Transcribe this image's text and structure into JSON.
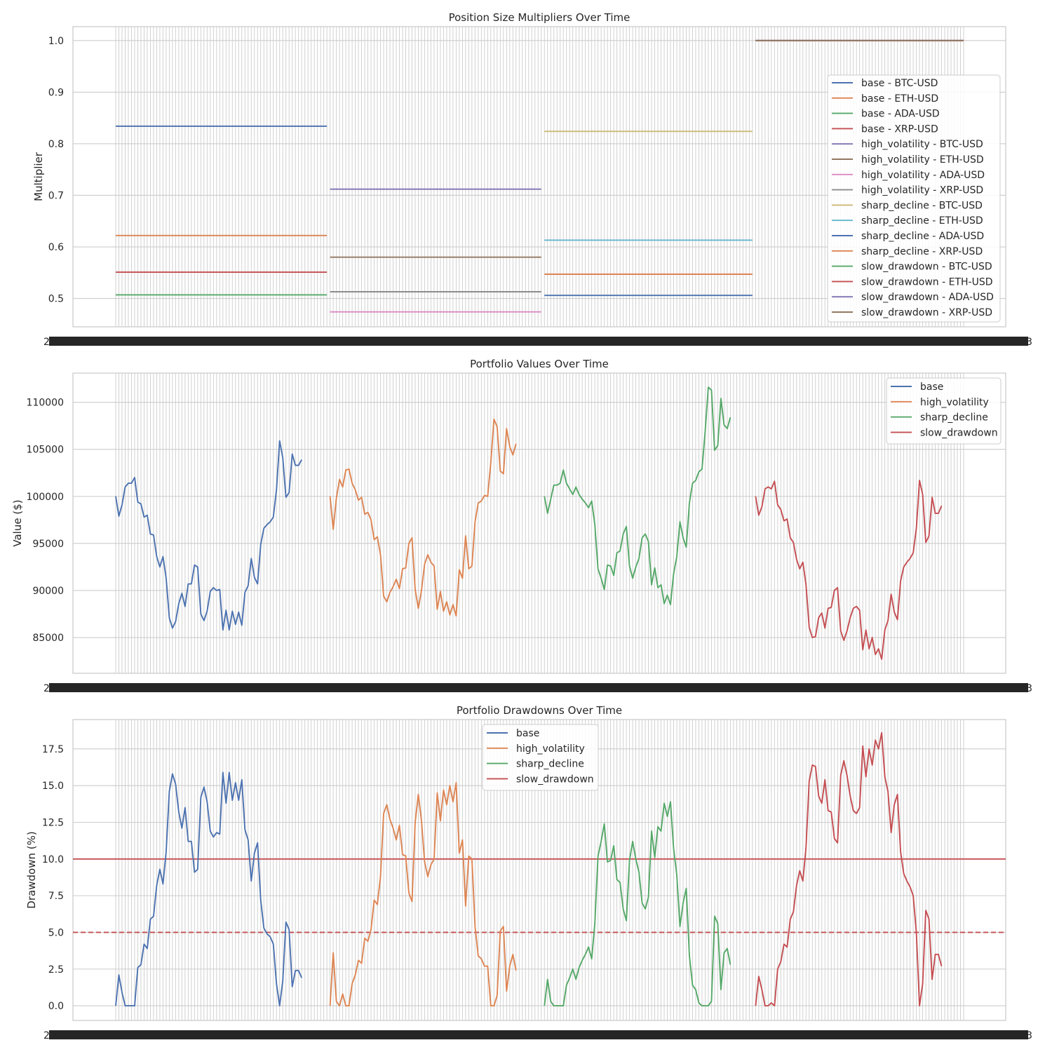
{
  "colors": {
    "palette": [
      "#4c72b0",
      "#dd8452",
      "#55a868",
      "#c44e52",
      "#8172b3",
      "#937860",
      "#da8bc3",
      "#8c8c8c",
      "#ccb974",
      "#64b5cd"
    ],
    "grid": "#cccccc",
    "spine": "#cccccc",
    "threshold_solid": "#c44e52",
    "threshold_dashed": "#c44e52"
  },
  "xaxis": {
    "n_points": 270,
    "tick_label_left": "2022",
    "tick_label_right": "3"
  },
  "chart_data": [
    {
      "type": "line",
      "title": "Position Size Multipliers Over Time",
      "xlabel": "",
      "ylabel": "Multiplier",
      "ylim": [
        0.445,
        1.027
      ],
      "yticks": [
        0.5,
        0.6,
        0.7,
        0.8,
        0.9,
        1.0
      ],
      "ytick_labels": [
        "0.5",
        "0.6",
        "0.7",
        "0.8",
        "0.9",
        "1.0"
      ],
      "legend_location": "center-right",
      "series": [
        {
          "name": "base - BTC-USD",
          "x_range": [
            0,
            67
          ],
          "value": 0.834
        },
        {
          "name": "base - ETH-USD",
          "x_range": [
            0,
            67
          ],
          "value": 0.622
        },
        {
          "name": "base - ADA-USD",
          "x_range": [
            0,
            67
          ],
          "value": 0.507
        },
        {
          "name": "base - XRP-USD",
          "x_range": [
            0,
            67
          ],
          "value": 0.551
        },
        {
          "name": "high_volatility - BTC-USD",
          "x_range": [
            68,
            135
          ],
          "value": 0.712
        },
        {
          "name": "high_volatility - ETH-USD",
          "x_range": [
            68,
            135
          ],
          "value": 0.58
        },
        {
          "name": "high_volatility - ADA-USD",
          "x_range": [
            68,
            135
          ],
          "value": 0.474
        },
        {
          "name": "high_volatility - XRP-USD",
          "x_range": [
            68,
            135
          ],
          "value": 0.513
        },
        {
          "name": "sharp_decline - BTC-USD",
          "x_range": [
            136,
            202
          ],
          "value": 0.824
        },
        {
          "name": "sharp_decline - ETH-USD",
          "x_range": [
            136,
            202
          ],
          "value": 0.613
        },
        {
          "name": "sharp_decline - ADA-USD",
          "x_range": [
            136,
            202
          ],
          "value": 0.506
        },
        {
          "name": "sharp_decline - XRP-USD",
          "x_range": [
            136,
            202
          ],
          "value": 0.547
        },
        {
          "name": "slow_drawdown - BTC-USD",
          "x_range": [
            203,
            269
          ],
          "value": 1.0
        },
        {
          "name": "slow_drawdown - ETH-USD",
          "x_range": [
            203,
            269
          ],
          "value": 1.0
        },
        {
          "name": "slow_drawdown - ADA-USD",
          "x_range": [
            203,
            269
          ],
          "value": 1.0
        },
        {
          "name": "slow_drawdown - XRP-USD",
          "x_range": [
            203,
            269
          ],
          "value": 1.0
        }
      ]
    },
    {
      "type": "line",
      "title": "Portfolio Values Over Time",
      "xlabel": "",
      "ylabel": "Value ($)",
      "ylim": [
        81200,
        113100
      ],
      "yticks": [
        85000,
        90000,
        95000,
        100000,
        105000,
        110000
      ],
      "ytick_labels": [
        "85000",
        "90000",
        "95000",
        "100000",
        "105000",
        "110000"
      ],
      "legend_location": "top-right",
      "series": [
        {
          "name": "base",
          "x_start": 0,
          "values": [
            100000,
            97900,
            99100,
            101000,
            101400,
            101400,
            102000,
            99400,
            99200,
            97800,
            98000,
            96000,
            95900,
            93600,
            92500,
            93600,
            91300,
            87100,
            86000,
            86700,
            88600,
            89700,
            88300,
            90700,
            90700,
            92700,
            92500,
            87500,
            86800,
            87800,
            89900,
            90300,
            90000,
            90100,
            85800,
            87900,
            85800,
            87800,
            86400,
            87700,
            86300,
            89800,
            90500,
            93400,
            91400,
            90700,
            94900,
            96600,
            97000,
            97300,
            97800,
            100700,
            105900,
            104100,
            99900,
            100400,
            104500,
            103300,
            103300,
            103900
          ]
        },
        {
          "name": "high_volatility",
          "x_start": 68,
          "values": [
            100000,
            96500,
            99800,
            101800,
            101000,
            102800,
            102900,
            101400,
            100700,
            99600,
            99900,
            98100,
            98300,
            97500,
            95400,
            95700,
            93800,
            89400,
            88800,
            89800,
            90400,
            91200,
            90200,
            92300,
            92400,
            95000,
            95600,
            90100,
            88100,
            90000,
            92800,
            93800,
            93000,
            92600,
            88000,
            89900,
            87800,
            88800,
            87400,
            88500,
            87300,
            92200,
            91300,
            95800,
            92300,
            92600,
            97300,
            99300,
            99500,
            100100,
            100000,
            103600,
            108200,
            107400,
            102700,
            102400,
            107200,
            105300,
            104400,
            105600
          ]
        },
        {
          "name": "sharp_decline",
          "x_start": 136,
          "values": [
            100000,
            98200,
            99700,
            101200,
            101200,
            101400,
            102800,
            101400,
            100800,
            100200,
            101000,
            100200,
            99700,
            99300,
            98800,
            99500,
            97000,
            92300,
            91300,
            90100,
            92700,
            92600,
            91600,
            94000,
            94200,
            96000,
            96800,
            92600,
            91300,
            92500,
            93400,
            95600,
            96000,
            95200,
            90600,
            92400,
            90300,
            90600,
            88600,
            89500,
            88500,
            91800,
            93600,
            97300,
            95600,
            94600,
            99300,
            101400,
            101700,
            102600,
            102900,
            106900,
            111600,
            111300,
            104900,
            105400,
            110400,
            107600,
            107200,
            108400
          ]
        },
        {
          "name": "slow_drawdown",
          "x_start": 203,
          "values": [
            100000,
            98000,
            98900,
            100800,
            101000,
            100800,
            101600,
            99100,
            98600,
            97400,
            97600,
            95600,
            95100,
            93300,
            92300,
            93000,
            90600,
            86100,
            85000,
            85100,
            87100,
            87600,
            86000,
            88100,
            88200,
            90000,
            90300,
            85700,
            84700,
            85700,
            87100,
            88100,
            88300,
            87900,
            83700,
            85800,
            83800,
            85000,
            83200,
            83800,
            82700,
            85800,
            86800,
            89600,
            87700,
            86900,
            91000,
            92500,
            93000,
            93400,
            94000,
            96600,
            101700,
            100200,
            95100,
            95800,
            99900,
            98200,
            98200,
            99000
          ]
        }
      ]
    },
    {
      "type": "line",
      "title": "Portfolio Drawdowns Over Time",
      "xlabel": "",
      "ylabel": "Drawdown (%)",
      "ylim": [
        -1.0,
        19.5
      ],
      "yticks": [
        0.0,
        2.5,
        5.0,
        7.5,
        10.0,
        12.5,
        15.0,
        17.5
      ],
      "ytick_labels": [
        "0.0",
        "2.5",
        "5.0",
        "7.5",
        "10.0",
        "12.5",
        "15.0",
        "17.5"
      ],
      "legend_location": "top-center",
      "reference_lines": [
        {
          "y": 10.0,
          "style": "solid"
        },
        {
          "y": 5.0,
          "style": "dashed"
        }
      ],
      "series": [
        {
          "name": "base",
          "x_start": 0,
          "values": [
            0.0,
            2.1,
            0.9,
            0.0,
            0.0,
            0.0,
            0.0,
            2.6,
            2.8,
            4.2,
            3.9,
            5.9,
            6.1,
            8.2,
            9.3,
            8.3,
            10.5,
            14.6,
            15.8,
            15.1,
            13.2,
            12.1,
            13.5,
            11.2,
            11.2,
            9.1,
            9.3,
            14.2,
            14.9,
            13.9,
            11.9,
            11.5,
            11.8,
            11.7,
            15.9,
            13.8,
            15.9,
            14.0,
            15.2,
            14.0,
            15.4,
            12.0,
            11.3,
            8.5,
            10.4,
            11.1,
            7.2,
            5.3,
            4.9,
            4.7,
            4.2,
            1.5,
            0.0,
            1.7,
            5.7,
            5.2,
            1.3,
            2.4,
            2.4,
            1.9
          ]
        },
        {
          "name": "high_volatility",
          "x_start": 68,
          "values": [
            0.0,
            3.6,
            0.3,
            0.0,
            0.8,
            0.0,
            0.0,
            1.5,
            2.1,
            3.1,
            2.9,
            4.6,
            4.4,
            5.2,
            7.2,
            6.9,
            8.8,
            13.1,
            13.7,
            12.7,
            12.1,
            11.3,
            12.3,
            10.3,
            10.2,
            7.7,
            7.1,
            12.5,
            14.4,
            12.6,
            9.8,
            8.8,
            9.6,
            10.0,
            14.5,
            12.6,
            14.7,
            13.7,
            15.0,
            13.9,
            15.2,
            10.4,
            11.3,
            6.8,
            10.2,
            10.0,
            5.4,
            3.4,
            3.2,
            2.7,
            2.7,
            0.0,
            0.0,
            0.7,
            5.1,
            5.4,
            1.0,
            2.7,
            3.5,
            2.4
          ]
        },
        {
          "name": "sharp_decline",
          "x_start": 136,
          "values": [
            0.0,
            1.8,
            0.3,
            0.0,
            0.0,
            0.0,
            0.0,
            1.4,
            1.9,
            2.5,
            1.8,
            2.6,
            3.1,
            3.5,
            4.0,
            3.2,
            5.6,
            10.2,
            11.2,
            12.4,
            9.8,
            9.9,
            10.9,
            8.6,
            8.4,
            6.6,
            5.8,
            9.9,
            11.2,
            10.0,
            9.1,
            7.0,
            6.6,
            7.4,
            11.9,
            10.1,
            12.2,
            11.9,
            13.8,
            12.9,
            13.9,
            10.7,
            8.9,
            5.4,
            7.0,
            8.0,
            3.4,
            1.4,
            1.1,
            0.2,
            0.0,
            0.0,
            0.0,
            0.3,
            6.1,
            5.6,
            1.1,
            3.6,
            3.9,
            2.8
          ]
        },
        {
          "name": "slow_drawdown",
          "x_start": 203,
          "values": [
            0.0,
            2.0,
            1.1,
            0.0,
            0.0,
            0.2,
            0.0,
            2.5,
            3.0,
            4.2,
            4.0,
            5.9,
            6.4,
            8.2,
            9.2,
            8.5,
            10.8,
            15.3,
            16.4,
            16.3,
            14.3,
            13.8,
            15.4,
            13.3,
            13.2,
            11.4,
            11.1,
            15.7,
            16.7,
            15.7,
            14.3,
            13.3,
            13.1,
            13.5,
            17.7,
            15.6,
            17.5,
            16.4,
            18.1,
            17.5,
            18.6,
            15.6,
            14.6,
            11.8,
            13.7,
            14.4,
            10.5,
            9.0,
            8.5,
            8.1,
            7.5,
            5.0,
            0.0,
            1.5,
            6.5,
            5.9,
            1.8,
            3.5,
            3.5,
            2.7
          ]
        }
      ]
    }
  ]
}
